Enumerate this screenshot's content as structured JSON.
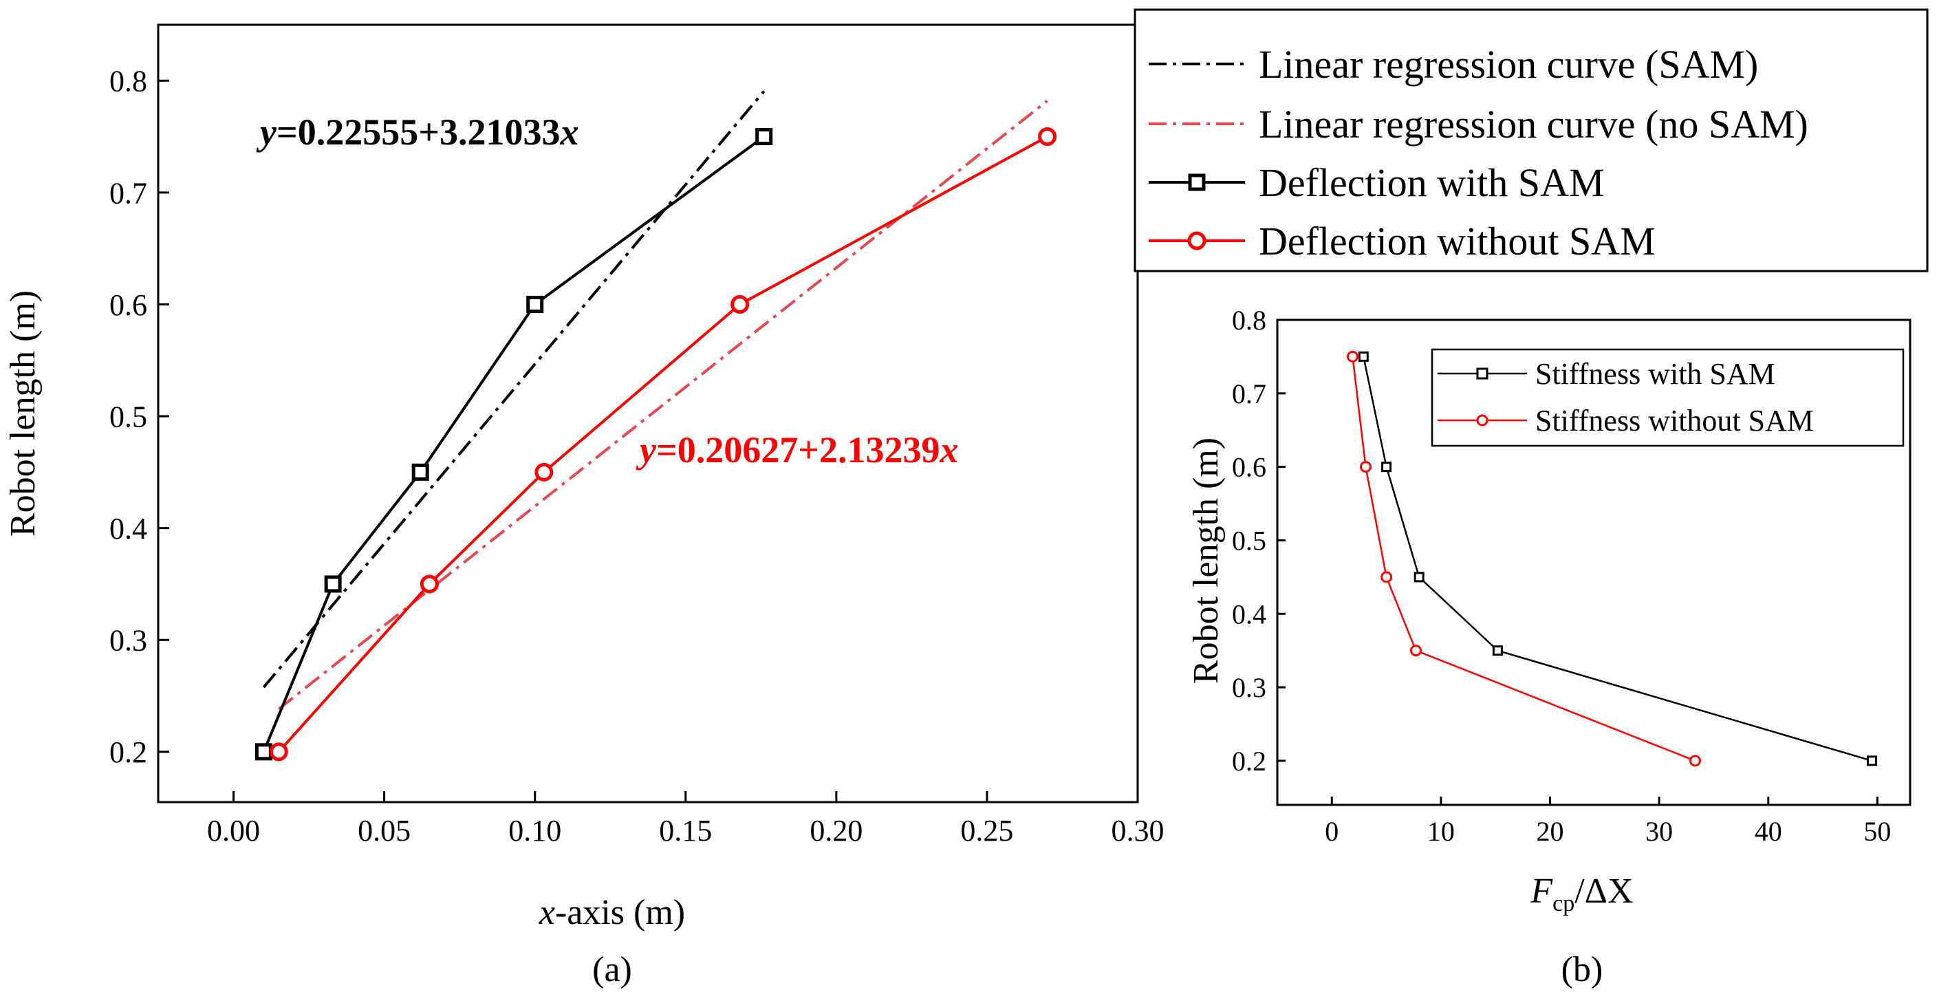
{
  "chart_data": [
    {
      "type": "line",
      "panel": "(a)",
      "xlabel_var": "x",
      "xlabel_rest": "-axis (m)",
      "ylabel": "Robot length (m)",
      "xlim": [
        -0.025,
        0.3
      ],
      "ylim": [
        0.155,
        0.85
      ],
      "xticks": [
        "0.00",
        "0.05",
        "0.10",
        "0.15",
        "0.20",
        "0.25",
        "0.30"
      ],
      "yticks": [
        "0.2",
        "0.3",
        "0.4",
        "0.5",
        "0.6",
        "0.7",
        "0.8"
      ],
      "series": [
        {
          "name": "Deflection with SAM",
          "color": "#000000",
          "marker": "square",
          "x": [
            0.01,
            0.033,
            0.062,
            0.1,
            0.176
          ],
          "y": [
            0.2,
            0.35,
            0.45,
            0.6,
            0.75
          ]
        },
        {
          "name": "Deflection without SAM",
          "color": "#ff0000",
          "marker": "circle",
          "x": [
            0.015,
            0.065,
            0.103,
            0.168,
            0.27
          ],
          "y": [
            0.2,
            0.35,
            0.45,
            0.6,
            0.75
          ]
        }
      ],
      "fits": [
        {
          "name": "Linear regression curve (SAM)",
          "color": "#000000",
          "intercept": 0.22555,
          "slope": 3.21033,
          "x_range": [
            0.01,
            0.176
          ]
        },
        {
          "name": "Linear regression curve (no SAM)",
          "color": "#e8474f",
          "intercept": 0.20627,
          "slope": 2.13239,
          "x_range": [
            0.015,
            0.27
          ]
        }
      ],
      "annotations": [
        {
          "var": "y",
          "text": "=0.22555+3.21033",
          "var2": "x",
          "color": "#000000"
        },
        {
          "var": "y",
          "text": "=0.20627+2.13239",
          "var2": "x",
          "color": "#ff0000"
        }
      ],
      "legend": [
        "Linear regression curve (SAM)",
        "Linear regression curve (no SAM)",
        "Deflection with SAM",
        "Deflection without SAM"
      ]
    },
    {
      "type": "line",
      "panel": "(b)",
      "xlabel_main": "F",
      "xlabel_sub": "cp",
      "xlabel_rest": "/ΔX",
      "ylabel": "Robot length (m)",
      "xlim": [
        -5,
        53
      ],
      "ylim": [
        0.14,
        0.8
      ],
      "xticks": [
        "0",
        "10",
        "20",
        "30",
        "40",
        "50"
      ],
      "yticks": [
        "0.2",
        "0.3",
        "0.4",
        "0.5",
        "0.6",
        "0.7",
        "0.8"
      ],
      "series": [
        {
          "name": "Stiffness with SAM",
          "color": "#000000",
          "marker": "square",
          "x": [
            49.5,
            15.2,
            8.0,
            5.0,
            2.9
          ],
          "y": [
            0.2,
            0.35,
            0.45,
            0.6,
            0.75
          ]
        },
        {
          "name": "Stiffness without SAM",
          "color": "#ff0000",
          "marker": "circle",
          "x": [
            33.3,
            7.7,
            5.0,
            3.1,
            1.9
          ],
          "y": [
            0.2,
            0.35,
            0.45,
            0.6,
            0.75
          ]
        }
      ],
      "legend": [
        "Stiffness with SAM",
        "Stiffness without SAM"
      ]
    }
  ]
}
